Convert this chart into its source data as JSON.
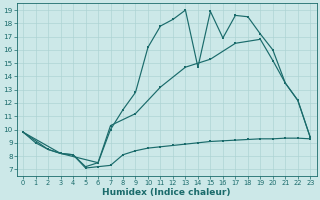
{
  "bg_color": "#cce8e8",
  "line_color": "#1a6b6b",
  "grid_color": "#aed4d4",
  "xlabel": "Humidex (Indice chaleur)",
  "xlim": [
    -0.5,
    23.5
  ],
  "ylim": [
    6.5,
    19.5
  ],
  "yticks": [
    7,
    8,
    9,
    10,
    11,
    12,
    13,
    14,
    15,
    16,
    17,
    18,
    19
  ],
  "xticks": [
    0,
    1,
    2,
    3,
    4,
    5,
    6,
    7,
    8,
    9,
    10,
    11,
    12,
    13,
    14,
    15,
    16,
    17,
    18,
    19,
    20,
    21,
    22,
    23
  ],
  "series1_x": [
    0,
    1,
    2,
    3,
    4,
    5,
    6,
    7,
    8,
    9,
    10,
    11,
    12,
    13,
    14,
    15,
    16,
    17,
    18,
    19,
    20,
    21,
    22,
    23
  ],
  "series1_y": [
    9.8,
    9.0,
    8.5,
    8.2,
    8.1,
    7.1,
    7.2,
    7.3,
    8.1,
    8.4,
    8.6,
    8.7,
    8.8,
    8.9,
    9.0,
    9.1,
    9.15,
    9.2,
    9.25,
    9.3,
    9.3,
    9.35,
    9.35,
    9.3
  ],
  "series2_x": [
    0,
    2,
    3,
    4,
    5,
    6,
    7,
    8,
    9,
    10,
    11,
    12,
    13,
    14,
    15,
    16,
    17,
    18,
    19,
    20,
    21,
    22,
    23
  ],
  "series2_y": [
    9.8,
    8.5,
    8.2,
    8.1,
    7.2,
    7.5,
    10.0,
    11.5,
    12.8,
    16.2,
    17.8,
    18.3,
    19.0,
    14.7,
    18.9,
    16.9,
    18.6,
    18.5,
    17.2,
    16.0,
    13.5,
    12.2,
    9.4
  ],
  "series3_x": [
    0,
    3,
    6,
    7,
    9,
    11,
    13,
    15,
    17,
    19,
    20,
    21,
    22,
    23
  ],
  "series3_y": [
    9.8,
    8.2,
    7.5,
    10.3,
    11.2,
    13.2,
    14.7,
    15.3,
    16.5,
    16.8,
    15.2,
    13.5,
    12.2,
    9.4
  ],
  "marker_size": 2.0,
  "line_width": 0.85,
  "tick_fontsize": 5.0,
  "xlabel_fontsize": 6.5
}
